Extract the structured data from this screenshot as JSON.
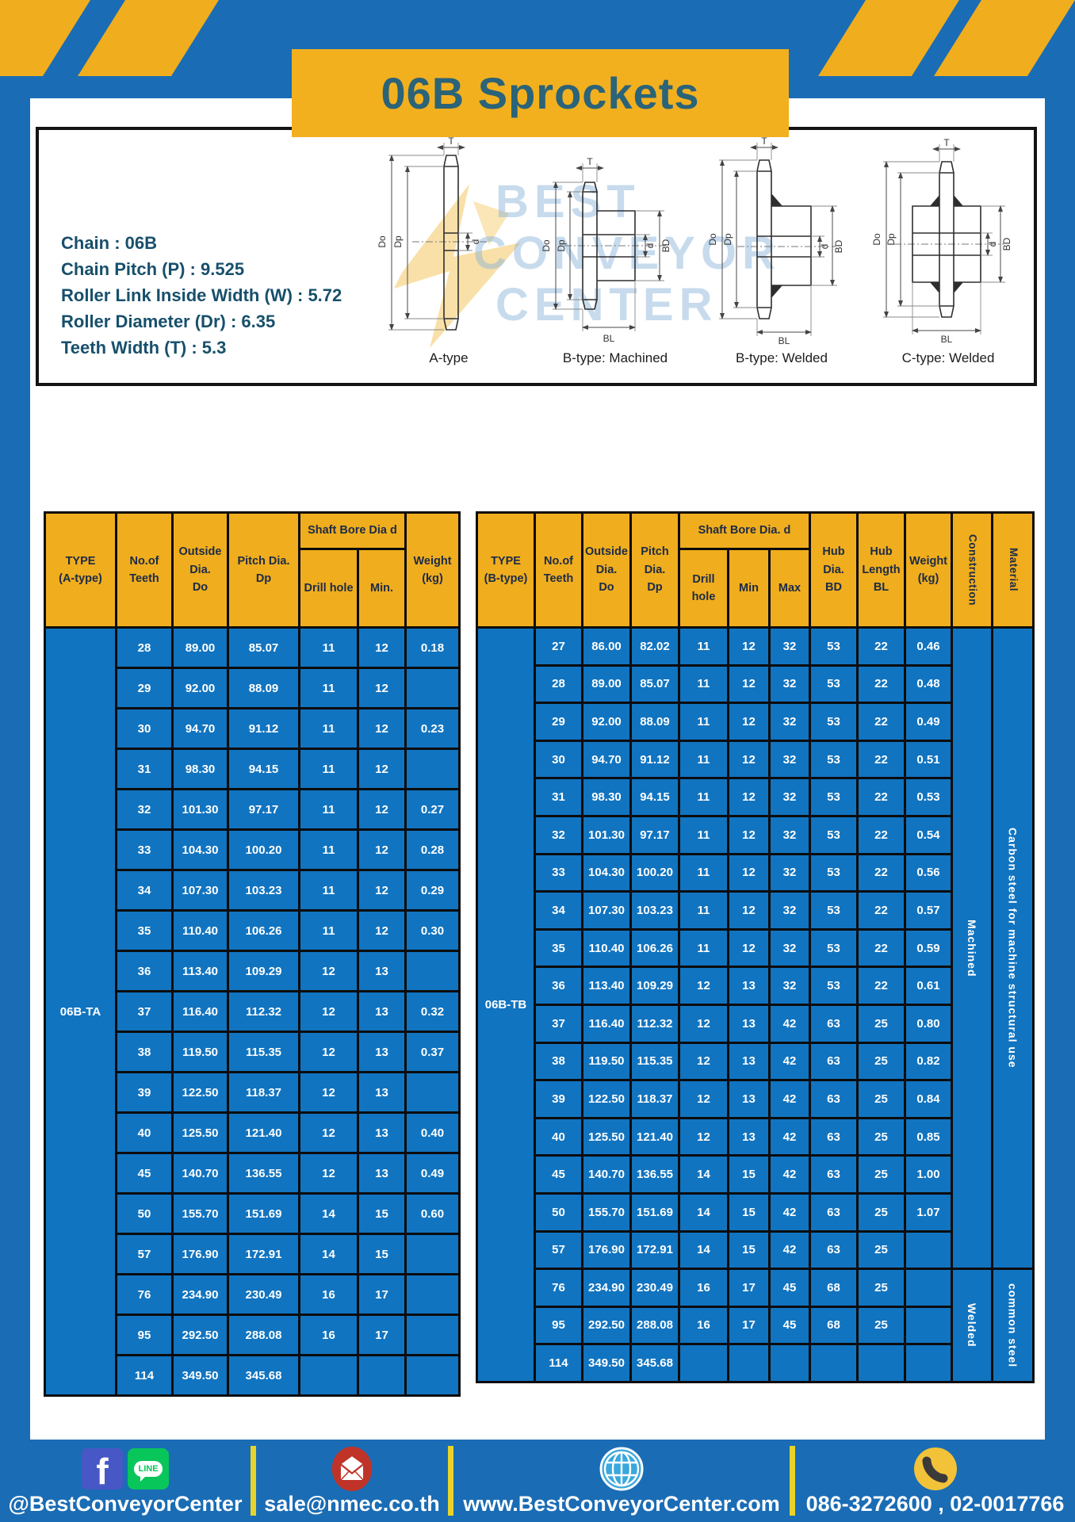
{
  "title": "06B Sprockets",
  "specs": [
    "Chain  : 06B",
    "Chain Pitch (P)  :  9.525",
    "Roller Link Inside Width (W)  :  5.72",
    "Roller Diameter (Dr)  : 6.35",
    "Teeth Width (T)  :  5.3"
  ],
  "watermark": [
    "BEST",
    "CONVEYOR",
    "CENTER"
  ],
  "diagrams": {
    "labels": [
      "A-type",
      "B-type: Machined",
      "B-type: Welded",
      "C-type: Welded"
    ],
    "dims": {
      "t": "T",
      "do": "Do",
      "dp": "Dp",
      "d": "d",
      "bd": "BD",
      "bl": "BL"
    }
  },
  "tables": {
    "a": {
      "widths": [
        90,
        71,
        70,
        90,
        74,
        60,
        68
      ],
      "header": [
        [
          {
            "t": "TYPE\n(A-type)",
            "rs": 2
          },
          {
            "t": "No.of\nTeeth",
            "rs": 2
          },
          {
            "t": "Outside\nDia.\nDo",
            "rs": 2
          },
          {
            "t": "Pitch Dia.\nDp",
            "rs": 2
          },
          {
            "t": "Shaft Bore Dia d",
            "cs": 2
          },
          {
            "t": "Weight\n(kg)",
            "rs": 2
          }
        ],
        [
          {
            "t": "Drill hole"
          },
          {
            "t": "Min."
          }
        ]
      ],
      "rows": [
        [
          {
            "t": "06B-TA",
            "rs": 19,
            "cls": "type"
          },
          "28",
          "89.00",
          "85.07",
          "11",
          "12",
          "0.18"
        ],
        [
          "29",
          "92.00",
          "88.09",
          "11",
          "12",
          ""
        ],
        [
          "30",
          "94.70",
          "91.12",
          "11",
          "12",
          "0.23"
        ],
        [
          "31",
          "98.30",
          "94.15",
          "11",
          "12",
          ""
        ],
        [
          "32",
          "101.30",
          "97.17",
          "11",
          "12",
          "0.27"
        ],
        [
          "33",
          "104.30",
          "100.20",
          "11",
          "12",
          "0.28"
        ],
        [
          "34",
          "107.30",
          "103.23",
          "11",
          "12",
          "0.29"
        ],
        [
          "35",
          "110.40",
          "106.26",
          "11",
          "12",
          "0.30"
        ],
        [
          "36",
          "113.40",
          "109.29",
          "12",
          "13",
          ""
        ],
        [
          "37",
          "116.40",
          "112.32",
          "12",
          "13",
          "0.32"
        ],
        [
          "38",
          "119.50",
          "115.35",
          "12",
          "13",
          "0.37"
        ],
        [
          "39",
          "122.50",
          "118.37",
          "12",
          "13",
          ""
        ],
        [
          "40",
          "125.50",
          "121.40",
          "12",
          "13",
          "0.40"
        ],
        [
          "45",
          "140.70",
          "136.55",
          "12",
          "13",
          "0.49"
        ],
        [
          "50",
          "155.70",
          "151.69",
          "14",
          "15",
          "0.60"
        ],
        [
          "57",
          "176.90",
          "172.91",
          "14",
          "15",
          ""
        ],
        [
          "76",
          "234.90",
          "230.49",
          "16",
          "17",
          ""
        ],
        [
          "95",
          "292.50",
          "288.08",
          "16",
          "17",
          ""
        ],
        [
          "114",
          "349.50",
          "345.68",
          "",
          "",
          ""
        ]
      ]
    },
    "b": {
      "widths": [
        73,
        60,
        60,
        61,
        62,
        52,
        51,
        60,
        60,
        59,
        51,
        52
      ],
      "header": [
        [
          {
            "t": "TYPE\n(B-type)",
            "rs": 2
          },
          {
            "t": "No.of\nTeeth",
            "rs": 2
          },
          {
            "t": "Outside\nDia.\nDo",
            "rs": 2
          },
          {
            "t": "Pitch\nDia.\nDp",
            "rs": 2
          },
          {
            "t": "Shaft Bore Dia. d",
            "cs": 3
          },
          {
            "t": "Hub\nDia.\nBD",
            "rs": 2
          },
          {
            "t": "Hub\nLength\nBL",
            "rs": 2
          },
          {
            "t": "Weight\n(kg)",
            "rs": 2
          },
          {
            "t": "Construction",
            "rs": 2,
            "cls": "vhead"
          },
          {
            "t": "Material",
            "rs": 2,
            "cls": "vhead"
          }
        ],
        [
          {
            "t": "Drill hole"
          },
          {
            "t": "Min"
          },
          {
            "t": "Max"
          }
        ]
      ],
      "rows": [
        [
          {
            "t": "06B-TB",
            "rs": 20,
            "cls": "type"
          },
          "27",
          "86.00",
          "82.02",
          "11",
          "12",
          "32",
          "53",
          "22",
          "0.46",
          {
            "t": "Machined",
            "rs": 17,
            "cls": "vcell"
          },
          {
            "t": "Carbon steel for machine structural use",
            "rs": 17,
            "cls": "vcell"
          }
        ],
        [
          "28",
          "89.00",
          "85.07",
          "11",
          "12",
          "32",
          "53",
          "22",
          "0.48"
        ],
        [
          "29",
          "92.00",
          "88.09",
          "11",
          "12",
          "32",
          "53",
          "22",
          "0.49"
        ],
        [
          "30",
          "94.70",
          "91.12",
          "11",
          "12",
          "32",
          "53",
          "22",
          "0.51"
        ],
        [
          "31",
          "98.30",
          "94.15",
          "11",
          "12",
          "32",
          "53",
          "22",
          "0.53"
        ],
        [
          "32",
          "101.30",
          "97.17",
          "11",
          "12",
          "32",
          "53",
          "22",
          "0.54"
        ],
        [
          "33",
          "104.30",
          "100.20",
          "11",
          "12",
          "32",
          "53",
          "22",
          "0.56"
        ],
        [
          "34",
          "107.30",
          "103.23",
          "11",
          "12",
          "32",
          "53",
          "22",
          "0.57"
        ],
        [
          "35",
          "110.40",
          "106.26",
          "11",
          "12",
          "32",
          "53",
          "22",
          "0.59"
        ],
        [
          "36",
          "113.40",
          "109.29",
          "12",
          "13",
          "32",
          "53",
          "22",
          "0.61"
        ],
        [
          "37",
          "116.40",
          "112.32",
          "12",
          "13",
          "42",
          "63",
          "25",
          "0.80"
        ],
        [
          "38",
          "119.50",
          "115.35",
          "12",
          "13",
          "42",
          "63",
          "25",
          "0.82"
        ],
        [
          "39",
          "122.50",
          "118.37",
          "12",
          "13",
          "42",
          "63",
          "25",
          "0.84"
        ],
        [
          "40",
          "125.50",
          "121.40",
          "12",
          "13",
          "42",
          "63",
          "25",
          "0.85"
        ],
        [
          "45",
          "140.70",
          "136.55",
          "14",
          "15",
          "42",
          "63",
          "25",
          "1.00"
        ],
        [
          "50",
          "155.70",
          "151.69",
          "14",
          "15",
          "42",
          "63",
          "25",
          "1.07"
        ],
        [
          "57",
          "176.90",
          "172.91",
          "14",
          "15",
          "42",
          "63",
          "25",
          ""
        ],
        [
          "76",
          "234.90",
          "230.49",
          "16",
          "17",
          "45",
          "68",
          "25",
          "",
          {
            "t": "Welded",
            "rs": 3,
            "cls": "vcell"
          },
          {
            "t": "common steel",
            "rs": 3,
            "cls": "vcell"
          }
        ],
        [
          "95",
          "292.50",
          "288.08",
          "16",
          "17",
          "45",
          "68",
          "25",
          ""
        ],
        [
          "114",
          "349.50",
          "345.68",
          "",
          "",
          "",
          "",
          "",
          ""
        ]
      ]
    }
  },
  "footer": {
    "social": "@BestConveyorCenter",
    "email": "sale@nmec.co.th",
    "website": "www.BestConveyorCenter.com",
    "phone": "086-3272600 , 02-0017766",
    "icons": {
      "facebook_letter": "f",
      "line_label": "LINE"
    }
  }
}
